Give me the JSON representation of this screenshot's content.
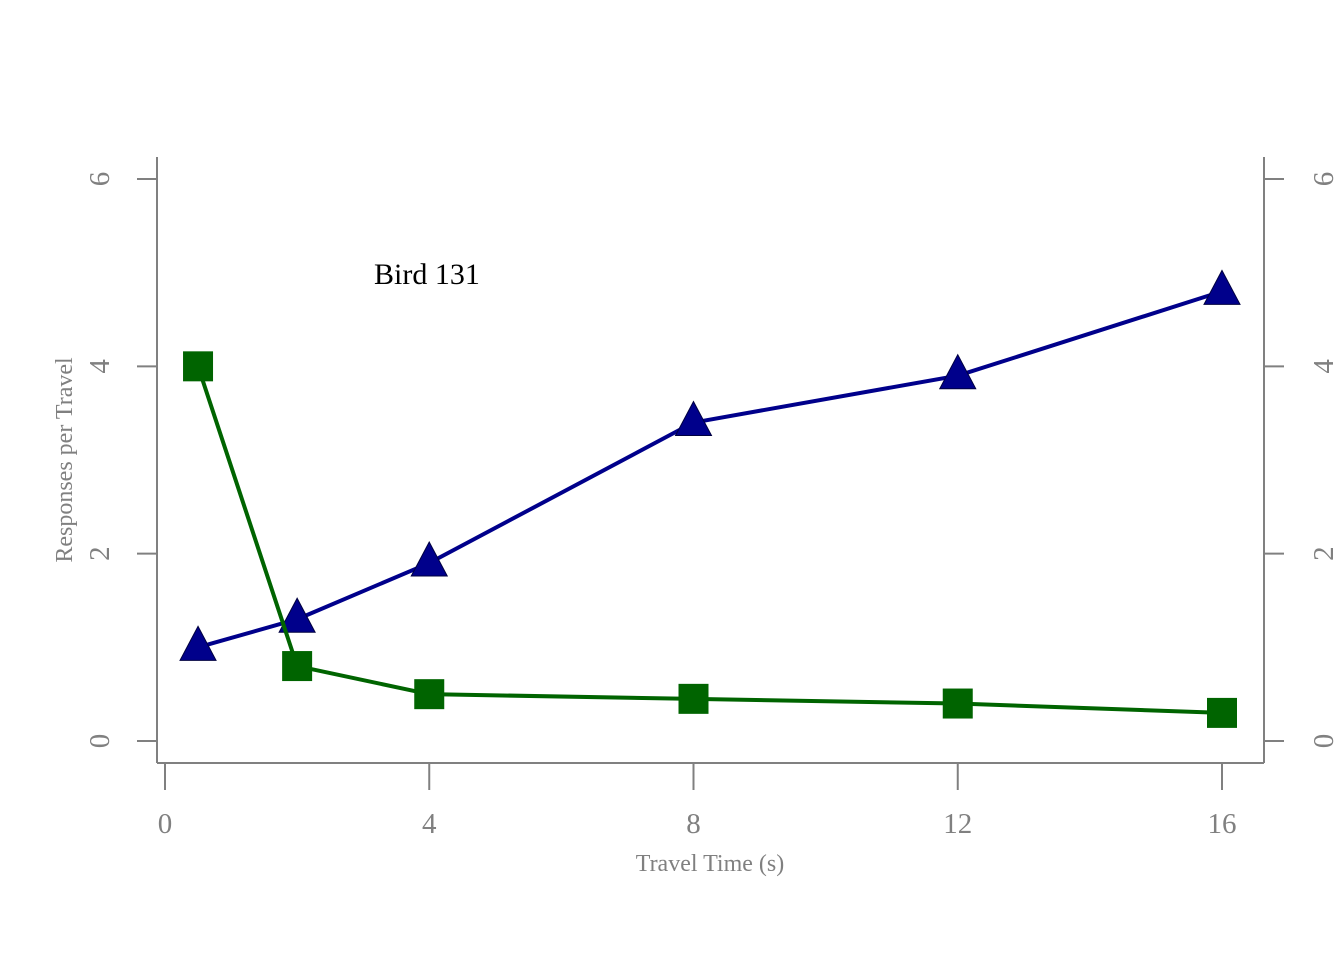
{
  "chart_data": {
    "type": "line",
    "title": "",
    "annotation": "Bird 131",
    "xlabel": "Travel Time (s)",
    "ylabel": "Responses per Travel",
    "xlim": [
      0,
      16
    ],
    "ylim": [
      0,
      6
    ],
    "xticks": [
      0,
      4,
      8,
      12,
      16
    ],
    "yticks": [
      0,
      2,
      4,
      6
    ],
    "right_axis": true,
    "grid": false,
    "legend": "none",
    "series": [
      {
        "marker": "triangle",
        "color": "#00008B",
        "x": [
          0.5,
          2,
          4,
          8,
          12,
          16
        ],
        "y": [
          1.0,
          1.3,
          1.9,
          3.4,
          3.9,
          4.8
        ]
      },
      {
        "marker": "square",
        "color": "#006400",
        "x": [
          0.5,
          2,
          4,
          8,
          12,
          16
        ],
        "y": [
          4.0,
          0.8,
          0.5,
          0.45,
          0.4,
          0.3
        ]
      }
    ]
  }
}
